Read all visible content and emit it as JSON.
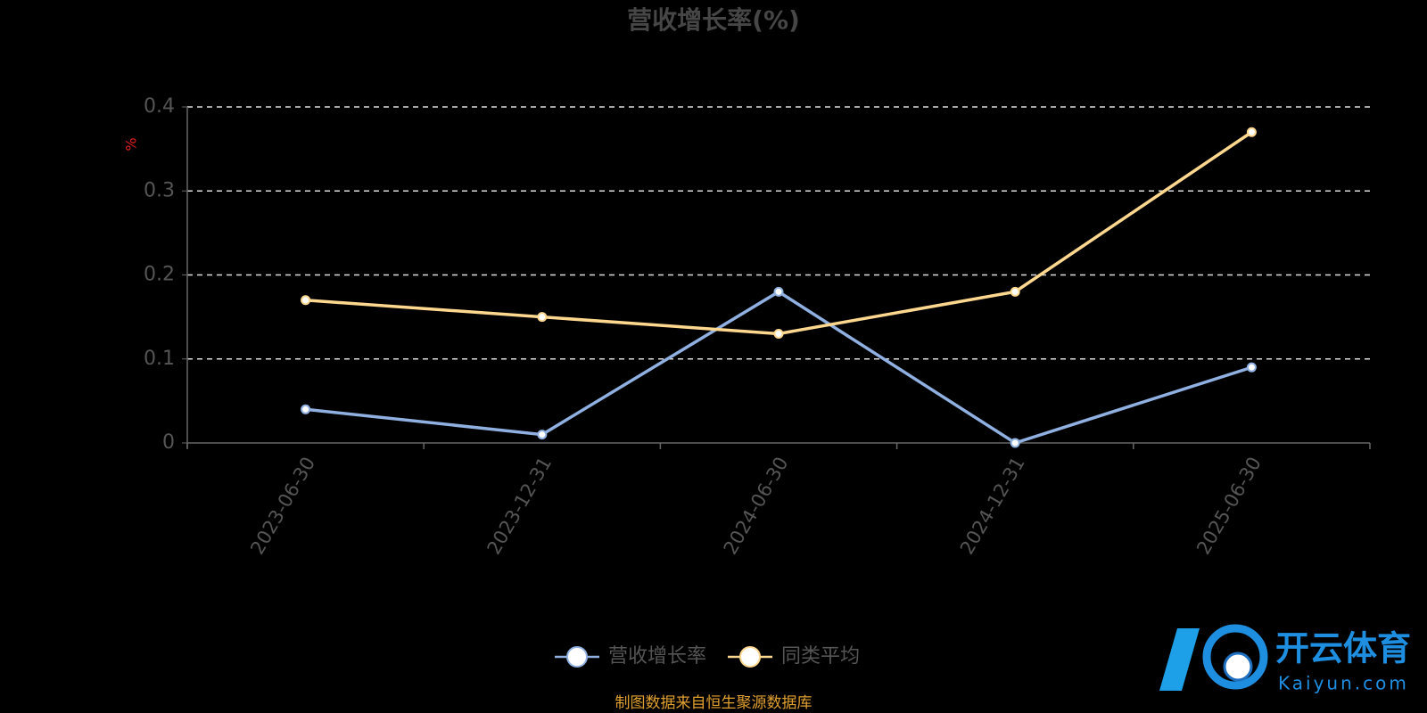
{
  "chart_data": {
    "type": "line",
    "title": "营收增长率(%)",
    "y_label": "%",
    "categories": [
      "2023-06-30",
      "2023-12-31",
      "2024-06-30",
      "2024-12-31",
      "2025-06-30"
    ],
    "series": [
      {
        "name": "营收增长率",
        "color": "#8fb0e0",
        "values": [
          0.04,
          0.01,
          0.18,
          0.0,
          0.09
        ]
      },
      {
        "name": "同类平均",
        "color": "#ffd88f",
        "values": [
          0.17,
          0.15,
          0.13,
          0.18,
          0.37
        ]
      }
    ],
    "ylim": [
      0,
      0.4
    ],
    "yticks": [
      0,
      0.1,
      0.2,
      0.3,
      0.4
    ],
    "grid": true,
    "source": "制图数据来自恒生聚源数据库"
  },
  "watermark": {
    "brand": "开云体育",
    "site": "Kaiyun.com"
  }
}
